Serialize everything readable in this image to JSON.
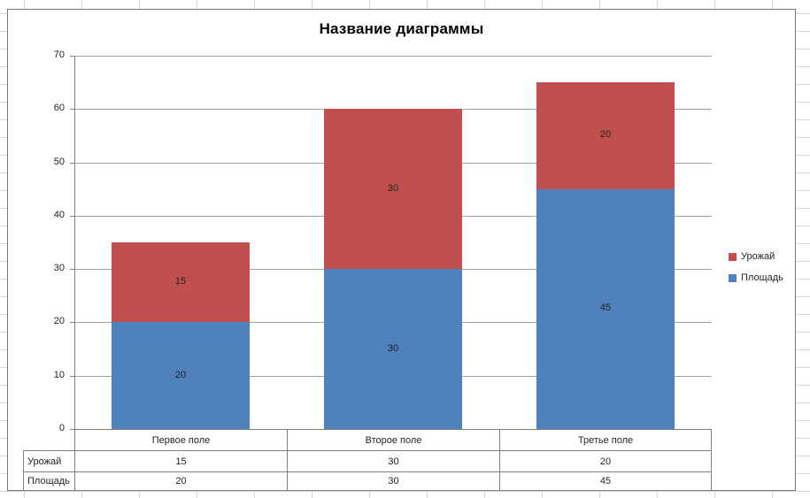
{
  "chart_data": {
    "type": "bar",
    "stacked": true,
    "title": "Название диаграммы",
    "categories": [
      "Первое поле",
      "Второе поле",
      "Третье поле"
    ],
    "series": [
      {
        "name": "Площадь",
        "color": "#4F81BD",
        "values": [
          20,
          30,
          45
        ]
      },
      {
        "name": "Урожай",
        "color": "#C0504D",
        "values": [
          15,
          30,
          20
        ]
      }
    ],
    "legend_entries": [
      {
        "label": "Урожай",
        "color": "#C0504D"
      },
      {
        "label": "Площадь",
        "color": "#4F81BD"
      }
    ],
    "legend_position": "right",
    "grid": true,
    "ylim": [
      0,
      70
    ],
    "yticks": [
      0,
      10,
      20,
      30,
      40,
      50,
      60,
      70
    ],
    "data_labels": true,
    "data_table": {
      "row_labels": [
        "Урожай",
        "Площадь"
      ],
      "rows": [
        [
          15,
          30,
          20
        ],
        [
          20,
          30,
          45
        ]
      ]
    },
    "colors": {
      "gridline": "#A3A3A3",
      "axis": "#808080",
      "table_border": "#808080",
      "label_text": "#1F1F1F",
      "title_text": "#000000"
    }
  }
}
